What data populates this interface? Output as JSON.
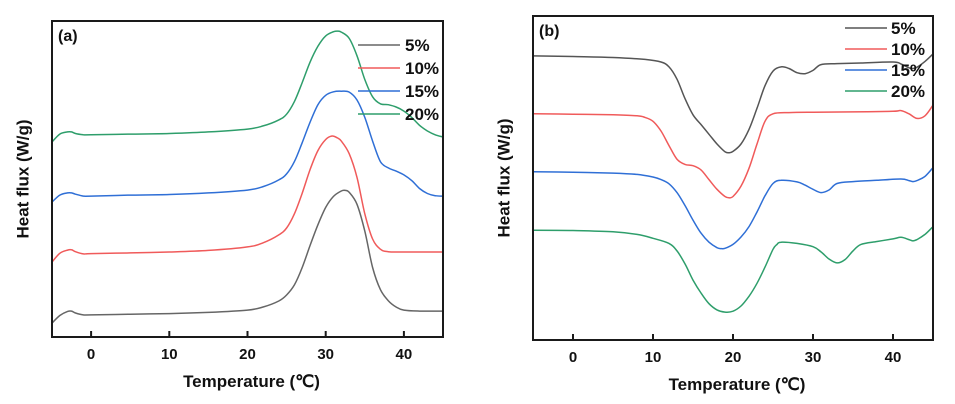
{
  "chart_data": [
    {
      "type": "line",
      "panel_label": "(a)",
      "title": "",
      "xlabel": "Temperature (℃)",
      "ylabel": "Heat flux (W/g)",
      "xlim": [
        -5,
        45
      ],
      "ylim": [
        0,
        100
      ],
      "y_units": "arbitrary (stacked, no tick labels)",
      "xticks": [
        0,
        10,
        20,
        30,
        40
      ],
      "xtick_labels": [
        "0",
        "10",
        "20",
        "30",
        "40"
      ],
      "grid": false,
      "legend_position": "top-right",
      "series": [
        {
          "name": "5%",
          "color": "#666666",
          "x": [
            -5,
            -4,
            -3,
            -2.5,
            -2,
            -1,
            0,
            5,
            10,
            15,
            20,
            22,
            24,
            25,
            26,
            27,
            28,
            29,
            30,
            31,
            32,
            32.5,
            33,
            34,
            35,
            36,
            37,
            38,
            39,
            40,
            42,
            45
          ],
          "y": [
            4.4,
            6.8,
            8.1,
            8.2,
            7.6,
            7.0,
            7.0,
            7.2,
            7.4,
            7.8,
            8.5,
            9.5,
            11.4,
            13.3,
            16.5,
            22,
            29,
            35.5,
            41,
            44.5,
            46.2,
            46.4,
            45.8,
            42,
            33.5,
            22,
            15,
            11.5,
            9.5,
            8.5,
            8.2,
            8.2
          ]
        },
        {
          "name": "10%",
          "color": "#f05a5a",
          "x": [
            -5,
            -4,
            -3,
            -2.5,
            -2,
            -1,
            0,
            5,
            10,
            15,
            20,
            22,
            24,
            25,
            26,
            27,
            28,
            29,
            30,
            30.8,
            31.5,
            32,
            33,
            34,
            35,
            36,
            37,
            38,
            40,
            45
          ],
          "y": [
            23.7,
            26.5,
            27.5,
            27.6,
            27,
            26.3,
            26.4,
            26.6,
            26.9,
            27.4,
            28.5,
            29.8,
            32.3,
            34.5,
            39,
            45.5,
            53,
            59,
            62.5,
            63.6,
            63,
            62,
            58,
            50.5,
            39,
            31,
            27.8,
            27.0,
            26.9,
            26.9
          ]
        },
        {
          "name": "15%",
          "color": "#2f6fd6",
          "x": [
            -5,
            -4,
            -3,
            -2.5,
            -2,
            -1,
            0,
            5,
            10,
            15,
            20,
            22,
            24,
            25,
            26,
            27,
            28,
            29,
            30,
            31,
            32,
            33,
            34,
            35,
            36,
            37,
            38,
            39,
            40,
            41,
            42,
            43,
            44,
            45
          ],
          "y": [
            42.7,
            44.9,
            45.6,
            45.6,
            45.2,
            44.6,
            44.6,
            44.9,
            45.1,
            45.6,
            46.5,
            47.6,
            49.7,
            51.6,
            55.5,
            61.5,
            68,
            73.5,
            76.5,
            77.6,
            77.8,
            77.5,
            75,
            69.5,
            62,
            55.5,
            53.5,
            52.5,
            51.3,
            49.5,
            47,
            45.4,
            44.7,
            44.6
          ]
        },
        {
          "name": "20%",
          "color": "#2e9e6b",
          "x": [
            -5,
            -4,
            -3,
            -2.5,
            -2,
            -1,
            0,
            5,
            10,
            15,
            20,
            22,
            24,
            25,
            26,
            27,
            28,
            29,
            30,
            31,
            31.5,
            32,
            33,
            34,
            35,
            36,
            37,
            38,
            39,
            40,
            41,
            42,
            43,
            44,
            45
          ],
          "y": [
            61.7,
            64.2,
            64.9,
            64.9,
            64.4,
            64.0,
            64.0,
            64.2,
            64.4,
            64.9,
            65.8,
            66.8,
            68.7,
            70.5,
            74.5,
            80.5,
            87,
            92,
            95.3,
            96.6,
            96.8,
            96.5,
            94.5,
            89,
            81.5,
            76,
            73.8,
            73.5,
            72.8,
            71.5,
            69.5,
            67,
            65.2,
            64.0,
            63.3
          ]
        }
      ]
    },
    {
      "type": "line",
      "panel_label": "(b)",
      "title": "",
      "xlabel": "Temperature (℃)",
      "ylabel": "Heat flux (W/g)",
      "xlim": [
        -5,
        45
      ],
      "ylim": [
        0,
        100
      ],
      "y_units": "arbitrary (stacked, no tick labels)",
      "xticks": [
        0,
        10,
        20,
        30,
        40
      ],
      "xtick_labels": [
        "0",
        "10",
        "20",
        "30",
        "40"
      ],
      "grid": false,
      "legend_position": "top-right",
      "series": [
        {
          "name": "5%",
          "color": "#555555",
          "x": [
            -5,
            0,
            5,
            9,
            11,
            12,
            13,
            14,
            15,
            16,
            17,
            18,
            19,
            19.5,
            20,
            21,
            22,
            23,
            24,
            25,
            26,
            27,
            28,
            29,
            30,
            31,
            33,
            36,
            40,
            41,
            42,
            42.5,
            43,
            44,
            45
          ],
          "y": [
            87.7,
            87.5,
            87.2,
            86.6,
            85.8,
            84.3,
            80.5,
            74.5,
            69.5,
            66.5,
            63.5,
            60.5,
            58.1,
            57.8,
            58.2,
            60.5,
            65,
            71.5,
            78.5,
            83,
            84.3,
            83.8,
            82.5,
            82.2,
            83.2,
            85,
            85.3,
            85.5,
            85.8,
            85.2,
            84.0,
            83.8,
            84.2,
            86.0,
            88.3
          ]
        },
        {
          "name": "10%",
          "color": "#f05a5a",
          "x": [
            -5,
            0,
            5,
            8,
            9,
            10,
            11,
            12,
            13,
            14,
            15,
            16,
            17,
            18,
            19,
            19.5,
            20,
            21,
            22,
            23,
            24,
            25,
            27,
            30,
            35,
            40,
            41,
            42,
            43,
            44,
            45
          ],
          "y": [
            69.8,
            69.7,
            69.5,
            69.2,
            68.7,
            67.5,
            64.5,
            60,
            55.8,
            54.2,
            53.8,
            52.5,
            49.5,
            46.5,
            44.3,
            43.9,
            44.3,
            47.5,
            53,
            60.5,
            67.5,
            69.8,
            70.2,
            70.3,
            70.4,
            70.6,
            70.8,
            69.8,
            68.4,
            69.2,
            72.5
          ]
        },
        {
          "name": "15%",
          "color": "#2f6fd6",
          "x": [
            -5,
            0,
            5,
            8,
            10,
            11,
            12,
            13,
            14,
            15,
            16,
            17,
            18,
            18.5,
            19,
            20,
            21,
            22,
            23,
            24,
            25,
            26,
            28,
            29,
            30,
            31,
            32,
            33,
            35,
            38,
            41,
            42,
            42.5,
            43,
            44,
            45
          ],
          "y": [
            51.9,
            51.8,
            51.5,
            51.1,
            50.3,
            49.5,
            48.2,
            45.5,
            41.5,
            37,
            33,
            30.2,
            28.5,
            28.2,
            28.3,
            29.5,
            31.8,
            35,
            39.5,
            44.5,
            48.3,
            49.3,
            48.8,
            47.8,
            46.5,
            45.5,
            46.3,
            48.3,
            48.9,
            49.3,
            49.7,
            49.2,
            48.9,
            49.2,
            50.5,
            53.2
          ]
        },
        {
          "name": "20%",
          "color": "#2e9e6b",
          "x": [
            -5,
            0,
            5,
            8,
            10,
            12,
            13,
            14,
            15,
            16,
            17,
            18,
            19,
            20,
            21,
            22,
            23,
            24,
            25,
            25.5,
            26,
            28,
            30,
            31,
            32,
            33,
            34,
            35,
            36,
            38,
            40,
            41,
            42,
            42.5,
            43,
            44,
            45
          ],
          "y": [
            33.9,
            33.8,
            33.4,
            32.6,
            31.4,
            29.8,
            27.5,
            23.5,
            18.5,
            14.5,
            11.2,
            9.3,
            8.6,
            8.9,
            10.5,
            13.5,
            17.5,
            22.5,
            28,
            29.5,
            30.2,
            29.8,
            28.8,
            27.2,
            25.0,
            23.8,
            24.8,
            27.5,
            29.5,
            30.4,
            31.2,
            31.7,
            31.0,
            30.6,
            31.0,
            32.6,
            35.0
          ]
        }
      ]
    }
  ]
}
